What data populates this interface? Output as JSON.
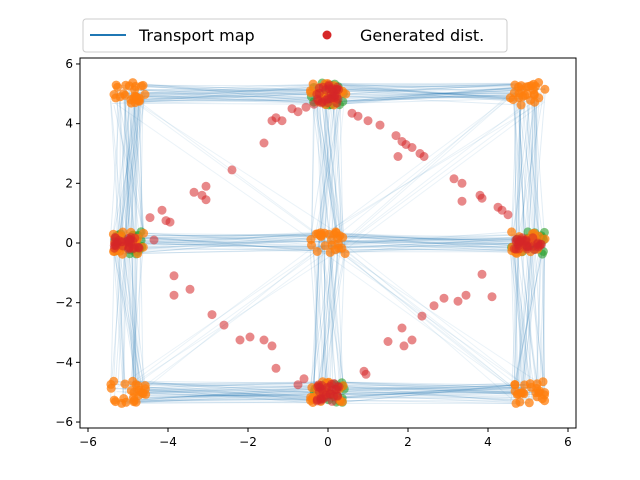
{
  "chart_data": {
    "type": "scatter",
    "title": "",
    "xlabel": "",
    "ylabel": "",
    "xlim": [
      -6.2,
      6.2
    ],
    "ylim": [
      -6.2,
      6.2
    ],
    "xticks": [
      -6,
      -4,
      -2,
      0,
      2,
      4,
      6
    ],
    "yticks": [
      -6,
      -4,
      -2,
      0,
      2,
      4,
      6
    ],
    "xtick_labels": [
      "−6",
      "−4",
      "−2",
      "0",
      "2",
      "4",
      "6"
    ],
    "ytick_labels": [
      "−6",
      "−4",
      "−2",
      "0",
      "2",
      "4",
      "6"
    ],
    "grid": false,
    "legend": {
      "placement": "top",
      "entries": [
        {
          "label": "Transport map",
          "kind": "line",
          "color": "#1f77b4"
        },
        {
          "label": "Generated dist.",
          "kind": "marker",
          "color": "#d62728"
        }
      ]
    },
    "colors": {
      "transport": "#1f77b4",
      "green": "#2ca02c",
      "orange": "#ff7f0e",
      "generated": "#d62728"
    },
    "grid_modes": [
      [
        -5,
        5
      ],
      [
        0,
        5
      ],
      [
        5,
        5
      ],
      [
        -5,
        0
      ],
      [
        0,
        0
      ],
      [
        5,
        0
      ],
      [
        -5,
        -5
      ],
      [
        0,
        -5
      ],
      [
        5,
        -5
      ]
    ],
    "green_modes": [
      [
        0,
        5
      ],
      [
        -5,
        0
      ],
      [
        5,
        0
      ],
      [
        0,
        -5
      ]
    ],
    "generated_points": [
      [
        -1.6,
        3.35
      ],
      [
        -1.4,
        4.1
      ],
      [
        -1.3,
        4.2
      ],
      [
        -1.15,
        4.1
      ],
      [
        -0.9,
        4.5
      ],
      [
        -0.75,
        4.4
      ],
      [
        -0.55,
        4.55
      ],
      [
        -0.35,
        4.65
      ],
      [
        0.6,
        4.35
      ],
      [
        0.75,
        4.25
      ],
      [
        1.0,
        4.1
      ],
      [
        1.3,
        3.95
      ],
      [
        1.7,
        3.6
      ],
      [
        1.85,
        3.4
      ],
      [
        1.95,
        3.3
      ],
      [
        2.1,
        3.2
      ],
      [
        1.75,
        2.9
      ],
      [
        2.3,
        3.0
      ],
      [
        2.4,
        2.9
      ],
      [
        3.15,
        2.15
      ],
      [
        3.35,
        2.0
      ],
      [
        3.35,
        1.4
      ],
      [
        3.8,
        1.6
      ],
      [
        3.85,
        1.5
      ],
      [
        4.25,
        1.2
      ],
      [
        4.35,
        1.1
      ],
      [
        4.5,
        0.95
      ],
      [
        -2.4,
        2.45
      ],
      [
        -3.35,
        1.7
      ],
      [
        -3.15,
        1.6
      ],
      [
        -3.05,
        1.45
      ],
      [
        -3.05,
        1.9
      ],
      [
        -4.05,
        0.75
      ],
      [
        -3.95,
        0.7
      ],
      [
        -4.15,
        1.1
      ],
      [
        -4.45,
        0.85
      ],
      [
        -4.35,
        0.1
      ],
      [
        -3.85,
        -1.1
      ],
      [
        -3.85,
        -1.75
      ],
      [
        -3.45,
        -1.55
      ],
      [
        -2.9,
        -2.4
      ],
      [
        -2.6,
        -2.75
      ],
      [
        -2.2,
        -3.25
      ],
      [
        -1.95,
        -3.15
      ],
      [
        -1.6,
        -3.25
      ],
      [
        -1.4,
        -3.45
      ],
      [
        -1.3,
        -4.2
      ],
      [
        -0.75,
        -4.75
      ],
      [
        -0.6,
        -4.55
      ],
      [
        0.9,
        -4.3
      ],
      [
        0.95,
        -4.4
      ],
      [
        1.5,
        -3.3
      ],
      [
        1.85,
        -2.85
      ],
      [
        1.9,
        -3.45
      ],
      [
        2.1,
        -3.25
      ],
      [
        2.35,
        -2.45
      ],
      [
        2.65,
        -2.1
      ],
      [
        2.9,
        -1.85
      ],
      [
        3.25,
        -1.95
      ],
      [
        3.45,
        -1.75
      ],
      [
        3.85,
        -1.05
      ],
      [
        4.1,
        -1.8
      ]
    ]
  }
}
